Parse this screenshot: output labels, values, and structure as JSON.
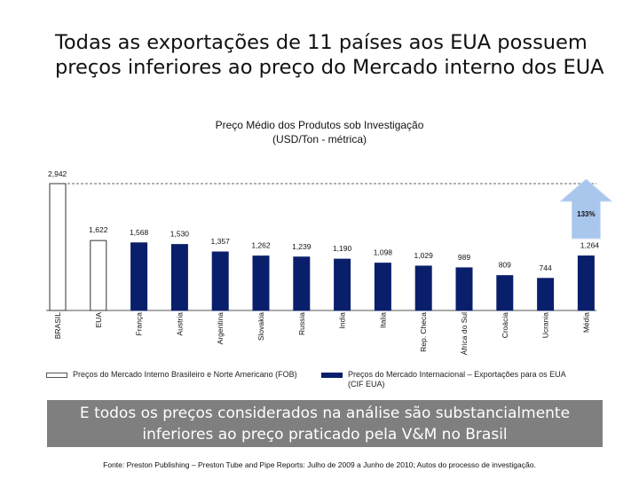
{
  "page": {
    "title_line1": "Todas as exportações de 11 países aos EUA possuem",
    "title_line2": "preços inferiores ao preço do Mercado interno dos EUA",
    "banner_line1": "E todos os preços considerados na análise são substancialmente",
    "banner_line2": "inferiores ao preço praticado pela V&M no Brasil",
    "source": "Fonte: Preston Publishing – Preston Tube and Pipe Reports: Julho de 2009 a Junho de 2010; Autos do processo de investigação.",
    "colors": {
      "domestic_fill": "#ffffff",
      "domestic_stroke": "#333333",
      "international_fill": "#0a1f6b",
      "arrow": "#a9c6ec",
      "banner_bg": "#7f7f7f"
    }
  },
  "chart_data": {
    "type": "bar",
    "title_line1": "Preço Médio dos Produtos sob Investigação",
    "title_line2": "(USD/Ton - métrica)",
    "categories": [
      "BRASIL",
      "EUA",
      "França",
      "Austria",
      "Argentina",
      "Slovakia",
      "Russia",
      "India",
      "Italia",
      "Rep. Checa",
      "África do Sul",
      "Croácia",
      "Ucrania",
      "Média"
    ],
    "values": [
      2942,
      1622,
      1568,
      1530,
      1357,
      1262,
      1239,
      1190,
      1098,
      1029,
      989,
      809,
      744,
      1264
    ],
    "value_labels": [
      "2,942",
      "1,622",
      "1,568",
      "1,530",
      "1,357",
      "1,262",
      "1,239",
      "1,190",
      "1,098",
      "1,029",
      "989",
      "809",
      "744",
      "1,264"
    ],
    "series_of_bar": [
      "domestic",
      "domestic",
      "international",
      "international",
      "international",
      "international",
      "international",
      "international",
      "international",
      "international",
      "international",
      "international",
      "international",
      "international"
    ],
    "reference_line": {
      "value": 2942,
      "label": "2,942",
      "style": "dashed"
    },
    "annotation": {
      "label": "133%",
      "shape": "up-arrow",
      "over": "Média"
    },
    "ylim": [
      0,
      3000
    ],
    "legend": [
      {
        "key": "domestic",
        "label": "Preços do Mercado Interno Brasileiro e Norte Americano (FOB)"
      },
      {
        "key": "international",
        "label": "Preços do Mercado Internacional – Exportações para os EUA (CIF EUA)"
      }
    ]
  }
}
